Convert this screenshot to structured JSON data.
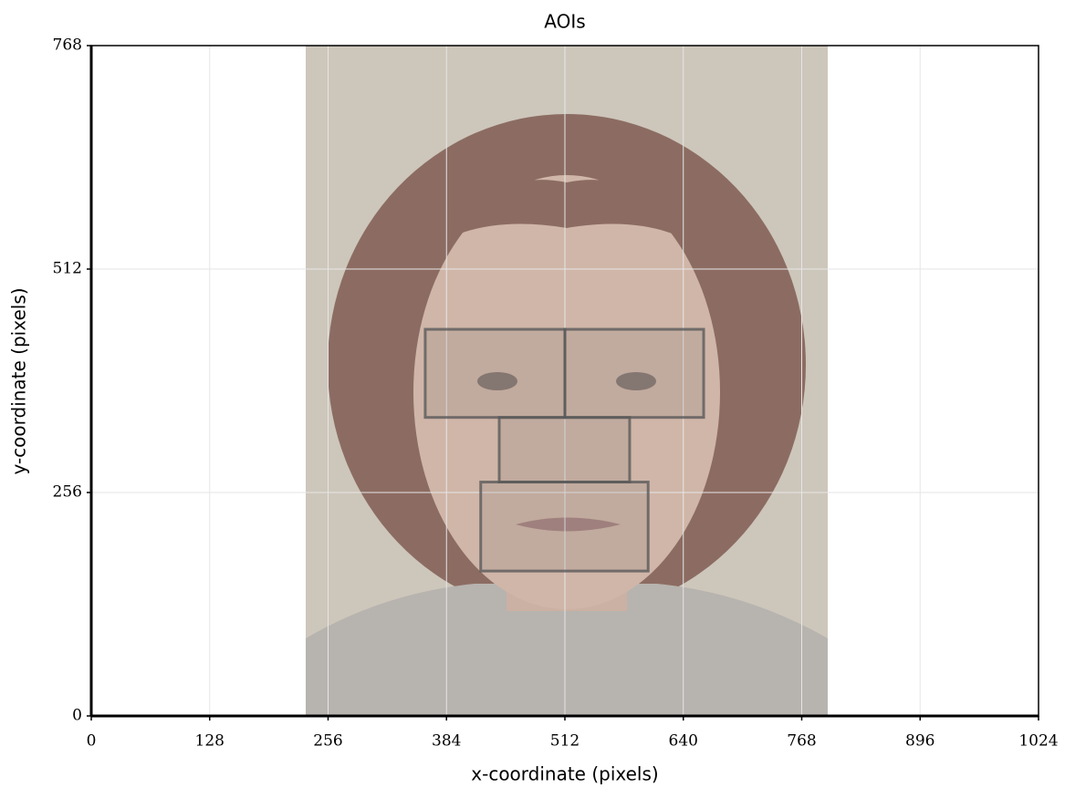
{
  "chart_data": {
    "type": "rectangle",
    "title": "AOIs",
    "x_label": "x-coordinate (pixels)",
    "y_label": "y-coordinate (pixels)",
    "x": [
      361,
      512,
      441,
      421
    ],
    "y": [
      342,
      342,
      268,
      166
    ],
    "width": [
      151,
      150,
      141,
      181
    ],
    "height": [
      101,
      101,
      74,
      102
    ],
    "color": "#5a5a5a",
    "xlim": [
      0,
      1024
    ],
    "xticks": [
      0,
      128,
      256,
      384,
      512,
      640,
      768,
      896,
      1024
    ],
    "ylim": [
      0,
      768
    ],
    "yticks": [
      0,
      256,
      512,
      768
    ],
    "grid": true
  }
}
